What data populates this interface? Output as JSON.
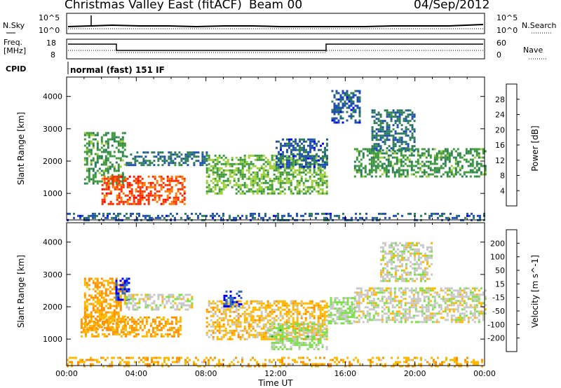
{
  "header": {
    "title": "Christmas Valley East (fitACF)",
    "beam": "Beam 00",
    "date": "04/Sep/2012"
  },
  "noise_panel": {
    "left_label": "N.Sky",
    "right_label": "N.Search",
    "left_ticks": [
      "10^5",
      "10^0"
    ],
    "right_ticks": [
      "10^5",
      "10^0"
    ]
  },
  "freq_panel": {
    "left_label_1": "Freq.",
    "left_label_2": "[MHz]",
    "right_label": "Nave",
    "left_ticks": [
      "18",
      "8"
    ],
    "right_ticks": [
      "60",
      "0"
    ]
  },
  "cpid": {
    "label": "CPID",
    "value": "normal (fast) 151 IF"
  },
  "x_axis": {
    "label": "Time UT",
    "ticks": [
      "00:00",
      "04:00",
      "08:00",
      "12:00",
      "16:00",
      "20:00",
      "00:00"
    ]
  },
  "colors": {
    "power": [
      "#0000ff",
      "#1f4fb0",
      "#2e7d5a",
      "#3f9a3f",
      "#9ccf3a",
      "#f0b000",
      "#ff7a00",
      "#ff3000",
      "#ff0000"
    ],
    "velocity": [
      "#ff0000",
      "#ff5a00",
      "#ff9000",
      "#ffb800",
      "#c8c8c8",
      "#7be04a",
      "#2fa030",
      "#2e6fb8",
      "#0000ff"
    ]
  },
  "chart_data": [
    {
      "type": "heatmap",
      "name": "power",
      "xlabel": "Time UT",
      "ylabel": "Slant Range [km]",
      "xlim": [
        0,
        24
      ],
      "ylim": [
        180,
        4600
      ],
      "yticks": [
        "1000",
        "2000",
        "3000",
        "4000"
      ],
      "colorbar": {
        "label": "Power [dB]",
        "ticks": [
          "4",
          "8",
          "12",
          "16",
          "20",
          "24",
          "28"
        ],
        "range": [
          0,
          32
        ]
      },
      "regions": [
        {
          "t_start": 1.0,
          "t_end": 3.4,
          "r_start": 1300,
          "r_end": 2900,
          "value": 12
        },
        {
          "t_start": 2.0,
          "t_end": 6.8,
          "r_start": 650,
          "r_end": 1550,
          "value": 26
        },
        {
          "t_start": 3.4,
          "t_end": 8.0,
          "r_start": 1900,
          "r_end": 2300,
          "value": 8
        },
        {
          "t_start": 8.0,
          "t_end": 15.0,
          "r_start": 1000,
          "r_end": 2200,
          "value": 14
        },
        {
          "t_start": 12.0,
          "t_end": 15.0,
          "r_start": 1800,
          "r_end": 2700,
          "value": 6
        },
        {
          "t_start": 15.2,
          "t_end": 16.8,
          "r_start": 3200,
          "r_end": 4200,
          "value": 6
        },
        {
          "t_start": 16.5,
          "t_end": 24.0,
          "r_start": 1500,
          "r_end": 2400,
          "value": 12
        },
        {
          "t_start": 17.5,
          "t_end": 20.0,
          "r_start": 2300,
          "r_end": 3600,
          "value": 8
        },
        {
          "t_start": 0.0,
          "t_end": 24.0,
          "r_start": 180,
          "r_end": 400,
          "value": 6
        }
      ]
    },
    {
      "type": "heatmap",
      "name": "velocity",
      "xlabel": "Time UT",
      "ylabel": "Slant Range [km]",
      "xlim": [
        0,
        24
      ],
      "ylim": [
        180,
        4600
      ],
      "yticks": [
        "1000",
        "2000",
        "3000",
        "4000"
      ],
      "colorbar": {
        "label": "Velocity [m s^-1]",
        "ticks": [
          "200",
          "100",
          "50",
          "15",
          "-15",
          "-50",
          "-100",
          "-200"
        ],
        "range": [
          -250,
          250
        ]
      },
      "regions": [
        {
          "t_start": 1.0,
          "t_end": 3.4,
          "r_start": 1300,
          "r_end": 2900,
          "value": -80
        },
        {
          "t_start": 2.8,
          "t_end": 3.6,
          "r_start": 2200,
          "r_end": 2900,
          "value": 200
        },
        {
          "t_start": 0.8,
          "t_end": 6.5,
          "r_start": 1100,
          "r_end": 1700,
          "value": -80
        },
        {
          "t_start": 3.4,
          "t_end": 7.2,
          "r_start": 1900,
          "r_end": 2400,
          "value": 0
        },
        {
          "t_start": 8.0,
          "t_end": 15.0,
          "r_start": 1000,
          "r_end": 2200,
          "value": -50
        },
        {
          "t_start": 9.0,
          "t_end": 10.0,
          "r_start": 2000,
          "r_end": 2500,
          "value": 200
        },
        {
          "t_start": 11.5,
          "t_end": 15.0,
          "r_start": 700,
          "r_end": 1500,
          "value": 40
        },
        {
          "t_start": 15.0,
          "t_end": 16.5,
          "r_start": 1500,
          "r_end": 2300,
          "value": 30
        },
        {
          "t_start": 16.5,
          "t_end": 24.0,
          "r_start": 1500,
          "r_end": 2600,
          "value": 0
        },
        {
          "t_start": 18.0,
          "t_end": 21.0,
          "r_start": 2800,
          "r_end": 4000,
          "value": 0
        },
        {
          "t_start": 0.0,
          "t_end": 24.0,
          "r_start": 180,
          "r_end": 450,
          "value": -70
        }
      ]
    }
  ]
}
